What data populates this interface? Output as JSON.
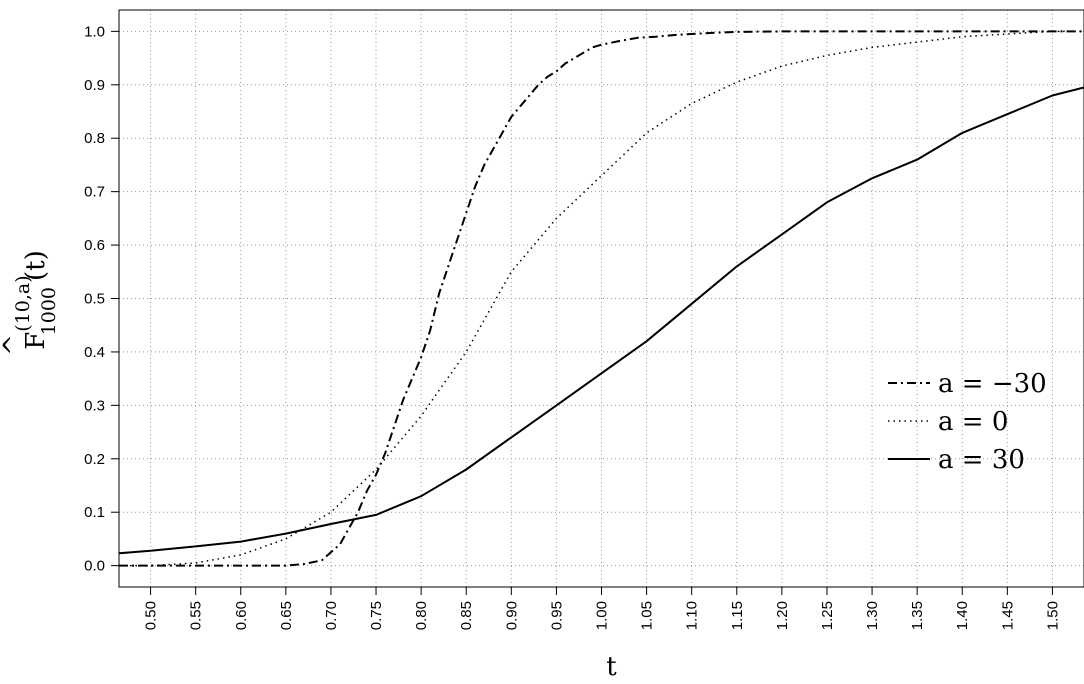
{
  "chart_data": {
    "type": "line",
    "title": "",
    "xlabel": "t",
    "ylabel": {
      "base": "F",
      "superscript": "(10,a)",
      "subscript": "1000",
      "argument": "(t)"
    },
    "xlim": [
      0.465,
      1.535
    ],
    "ylim": [
      -0.04,
      1.04
    ],
    "x_ticks": [
      "0.50",
      "0.55",
      "0.60",
      "0.65",
      "0.70",
      "0.75",
      "0.80",
      "0.85",
      "0.90",
      "0.95",
      "1.00",
      "1.05",
      "1.10",
      "1.15",
      "1.20",
      "1.25",
      "1.30",
      "1.35",
      "1.40",
      "1.45",
      "1.50"
    ],
    "y_ticks": [
      "0.0",
      "0.1",
      "0.2",
      "0.3",
      "0.4",
      "0.5",
      "0.6",
      "0.7",
      "0.8",
      "0.9",
      "1.0"
    ],
    "grid": true,
    "legend_position": "right",
    "colors": {
      "lines": "#000000",
      "grid": "#9a9a9a"
    },
    "series": [
      {
        "name": "a = −30",
        "style": "dashdot",
        "x": [
          0.465,
          0.5,
          0.55,
          0.6,
          0.65,
          0.67,
          0.69,
          0.7,
          0.71,
          0.72,
          0.73,
          0.74,
          0.75,
          0.76,
          0.77,
          0.78,
          0.79,
          0.8,
          0.81,
          0.82,
          0.83,
          0.84,
          0.85,
          0.86,
          0.87,
          0.88,
          0.89,
          0.9,
          0.91,
          0.92,
          0.93,
          0.94,
          0.95,
          0.96,
          0.97,
          0.98,
          0.99,
          1.0,
          1.02,
          1.04,
          1.06,
          1.08,
          1.1,
          1.12,
          1.15,
          1.2,
          1.3,
          1.4,
          1.5,
          1.535
        ],
        "y": [
          0.0,
          0.0,
          0.0,
          0.0,
          0.0,
          0.003,
          0.01,
          0.025,
          0.04,
          0.07,
          0.1,
          0.14,
          0.17,
          0.21,
          0.26,
          0.31,
          0.35,
          0.39,
          0.44,
          0.51,
          0.56,
          0.61,
          0.66,
          0.71,
          0.75,
          0.78,
          0.81,
          0.84,
          0.86,
          0.88,
          0.9,
          0.915,
          0.925,
          0.94,
          0.95,
          0.96,
          0.97,
          0.975,
          0.982,
          0.988,
          0.99,
          0.993,
          0.995,
          0.997,
          0.999,
          1.0,
          1.0,
          1.0,
          1.0,
          1.0
        ]
      },
      {
        "name": "a = 0",
        "style": "dotted",
        "x": [
          0.465,
          0.5,
          0.55,
          0.6,
          0.65,
          0.7,
          0.75,
          0.8,
          0.85,
          0.9,
          0.95,
          1.0,
          1.05,
          1.1,
          1.15,
          1.2,
          1.25,
          1.3,
          1.35,
          1.4,
          1.45,
          1.5,
          1.535
        ],
        "y": [
          0.0,
          0.0,
          0.005,
          0.02,
          0.05,
          0.1,
          0.18,
          0.28,
          0.4,
          0.55,
          0.65,
          0.73,
          0.81,
          0.865,
          0.905,
          0.935,
          0.955,
          0.97,
          0.98,
          0.99,
          0.995,
          1.0,
          1.0
        ]
      },
      {
        "name": "a = 30",
        "style": "solid",
        "x": [
          0.465,
          0.5,
          0.55,
          0.6,
          0.65,
          0.7,
          0.75,
          0.8,
          0.85,
          0.9,
          0.95,
          1.0,
          1.05,
          1.1,
          1.15,
          1.2,
          1.25,
          1.3,
          1.35,
          1.4,
          1.45,
          1.5,
          1.535
        ],
        "y": [
          0.023,
          0.028,
          0.036,
          0.045,
          0.06,
          0.078,
          0.095,
          0.13,
          0.18,
          0.24,
          0.3,
          0.36,
          0.42,
          0.49,
          0.56,
          0.62,
          0.68,
          0.725,
          0.76,
          0.81,
          0.845,
          0.88,
          0.895
        ]
      }
    ]
  }
}
